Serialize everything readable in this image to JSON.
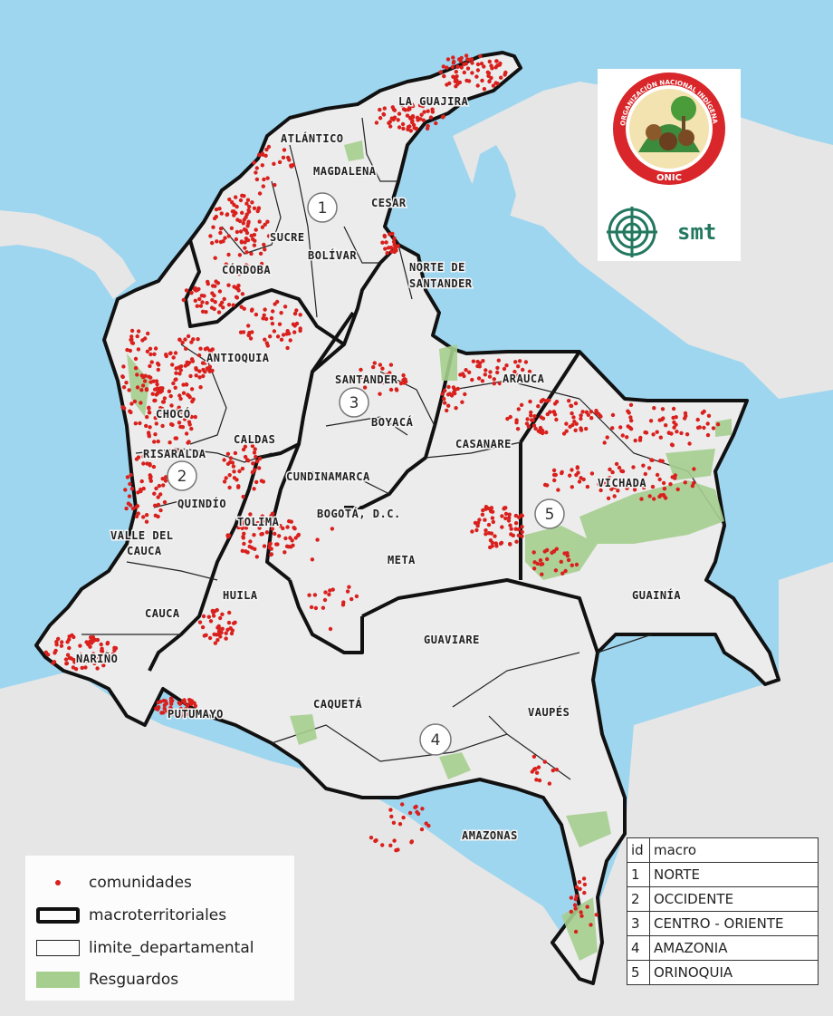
{
  "map": {
    "departments": [
      {
        "name": "LA GUAJIRA"
      },
      {
        "name": "ATLÁNTICO"
      },
      {
        "name": "MAGDALENA"
      },
      {
        "name": "CESAR"
      },
      {
        "name": "SUCRE"
      },
      {
        "name": "BOLÍVAR"
      },
      {
        "name": "CÓRDOBA"
      },
      {
        "name": "NORTE DE"
      },
      {
        "name": "SANTANDER"
      },
      {
        "name": "ANTIOQUIA"
      },
      {
        "name": "SANTANDER"
      },
      {
        "name": "ARAUCA"
      },
      {
        "name": "BOYACÁ"
      },
      {
        "name": "CHOCÓ"
      },
      {
        "name": "CALDAS"
      },
      {
        "name": "CASANARE"
      },
      {
        "name": "RISARALDA"
      },
      {
        "name": "CUNDINAMARCA"
      },
      {
        "name": "VICHADA"
      },
      {
        "name": "QUINDÍO"
      },
      {
        "name": "TOLIMA"
      },
      {
        "name": "BOGOTÁ, D.C."
      },
      {
        "name": "VALLE DEL"
      },
      {
        "name": "CAUCA"
      },
      {
        "name": "META"
      },
      {
        "name": "GUAINÍA"
      },
      {
        "name": "HUILA"
      },
      {
        "name": "CAUCA"
      },
      {
        "name": "GUAVIARE"
      },
      {
        "name": "NARIÑO"
      },
      {
        "name": "CAQUETÁ"
      },
      {
        "name": "VAUPÉS"
      },
      {
        "name": "PUTUMAYO"
      },
      {
        "name": "AMAZONAS"
      }
    ],
    "macro_markers": [
      "1",
      "2",
      "3",
      "4",
      "5"
    ],
    "colors": {
      "sea": "#9fd6ef",
      "land": "#e6e6e6",
      "colombia": "#ececec",
      "resguardos": "#a6cf8f",
      "comunidades": "#d9201d",
      "borders": "#111111"
    }
  },
  "legend": {
    "items": [
      {
        "label": "comunidades",
        "symbol": "red-dot"
      },
      {
        "label": "macroterritoriales",
        "symbol": "thick-outline-box"
      },
      {
        "label": "limite_departamental",
        "symbol": "thin-outline-box"
      },
      {
        "label": "Resguardos",
        "symbol": "green-fill-box"
      }
    ]
  },
  "table": {
    "headers": [
      "id",
      "macro"
    ],
    "rows": [
      [
        "1",
        "NORTE"
      ],
      [
        "2",
        "OCCIDENTE"
      ],
      [
        "3",
        "CENTRO - ORIENTE"
      ],
      [
        "4",
        "AMAZONIA"
      ],
      [
        "5",
        "ORINOQUIA"
      ]
    ]
  },
  "logos": {
    "onic": {
      "arc_text": "ORGANIZACIÓN NACIONAL INDÍGENA DE COLOMBIA",
      "acronym": "ONIC"
    },
    "smt": {
      "text": "smt"
    }
  }
}
